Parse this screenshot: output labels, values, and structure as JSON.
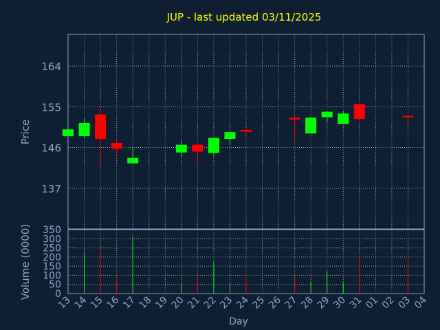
{
  "colors": {
    "background": "#0f1f33",
    "frame": "#8fa6c8",
    "grid": "#b9c4d4",
    "title": "#ffff00",
    "text": "#8fa6c8",
    "up": "#00ff00",
    "down": "#ff0000"
  },
  "chart_data": {
    "type": "candlestick",
    "title": "JUP - last updated 03/11/2025",
    "xlabel": "Day",
    "ylabel_price": "Price",
    "ylabel_volume": "Volume (0000)",
    "x_ticks": [
      "13",
      "14",
      "15",
      "16",
      "17",
      "18",
      "19",
      "20",
      "21",
      "22",
      "23",
      "24",
      "25",
      "26",
      "27",
      "28",
      "29",
      "30",
      "31",
      "01",
      "02",
      "03",
      "04"
    ],
    "price_axis": {
      "range": [
        128,
        171
      ],
      "ticks": [
        137,
        146,
        155,
        164
      ]
    },
    "volume_axis": {
      "range": [
        0,
        350
      ],
      "ticks": [
        0,
        50,
        100,
        150,
        200,
        250,
        300,
        350
      ]
    },
    "grid": true,
    "candles": [
      {
        "day": "13",
        "open": 148.5,
        "high": 150.0,
        "low": 148.5,
        "close": 150.0
      },
      {
        "day": "14",
        "open": 148.5,
        "high": 152.4,
        "low": 148.0,
        "close": 151.4
      },
      {
        "day": "15",
        "open": 153.3,
        "high": 155.0,
        "low": 141.5,
        "close": 147.9
      },
      {
        "day": "16",
        "open": 147.0,
        "high": 148.0,
        "low": 144.0,
        "close": 145.7
      },
      {
        "day": "17",
        "open": 142.5,
        "high": 145.8,
        "low": 142.5,
        "close": 143.7
      },
      {
        "day": "20",
        "open": 144.9,
        "high": 147.6,
        "low": 144.0,
        "close": 146.6
      },
      {
        "day": "21",
        "open": 146.6,
        "high": 147.0,
        "low": 142.5,
        "close": 145.1
      },
      {
        "day": "22",
        "open": 144.8,
        "high": 148.3,
        "low": 144.2,
        "close": 148.1
      },
      {
        "day": "23",
        "open": 147.9,
        "high": 149.5,
        "low": 146.5,
        "close": 149.4
      },
      {
        "day": "24",
        "open": 149.9,
        "high": 150.2,
        "low": 148.8,
        "close": 149.5
      },
      {
        "day": "27",
        "open": 152.6,
        "high": 153.0,
        "low": 148.0,
        "close": 152.2
      },
      {
        "day": "28",
        "open": 149.1,
        "high": 152.7,
        "low": 149.1,
        "close": 152.6
      },
      {
        "day": "29",
        "open": 152.7,
        "high": 154.0,
        "low": 151.5,
        "close": 153.9
      },
      {
        "day": "30",
        "open": 151.2,
        "high": 154.0,
        "low": 151.2,
        "close": 153.5
      },
      {
        "day": "31",
        "open": 155.6,
        "high": 155.6,
        "low": 152.3,
        "close": 152.3
      },
      {
        "day": "03",
        "open": 153.0,
        "high": 153.1,
        "low": 151.3,
        "close": 152.8
      }
    ],
    "volume": [
      {
        "day": "13",
        "value": 0,
        "direction": "up"
      },
      {
        "day": "14",
        "value": 230,
        "direction": "up"
      },
      {
        "day": "15",
        "value": 255,
        "direction": "down"
      },
      {
        "day": "16",
        "value": 80,
        "direction": "down"
      },
      {
        "day": "17",
        "value": 310,
        "direction": "up"
      },
      {
        "day": "20",
        "value": 60,
        "direction": "up"
      },
      {
        "day": "21",
        "value": 80,
        "direction": "down"
      },
      {
        "day": "22",
        "value": 180,
        "direction": "up"
      },
      {
        "day": "23",
        "value": 55,
        "direction": "up"
      },
      {
        "day": "24",
        "value": 90,
        "direction": "down"
      },
      {
        "day": "27",
        "value": 85,
        "direction": "down"
      },
      {
        "day": "28",
        "value": 65,
        "direction": "up"
      },
      {
        "day": "29",
        "value": 120,
        "direction": "up"
      },
      {
        "day": "30",
        "value": 60,
        "direction": "up"
      },
      {
        "day": "31",
        "value": 200,
        "direction": "down"
      },
      {
        "day": "03",
        "value": 190,
        "direction": "down"
      }
    ]
  }
}
